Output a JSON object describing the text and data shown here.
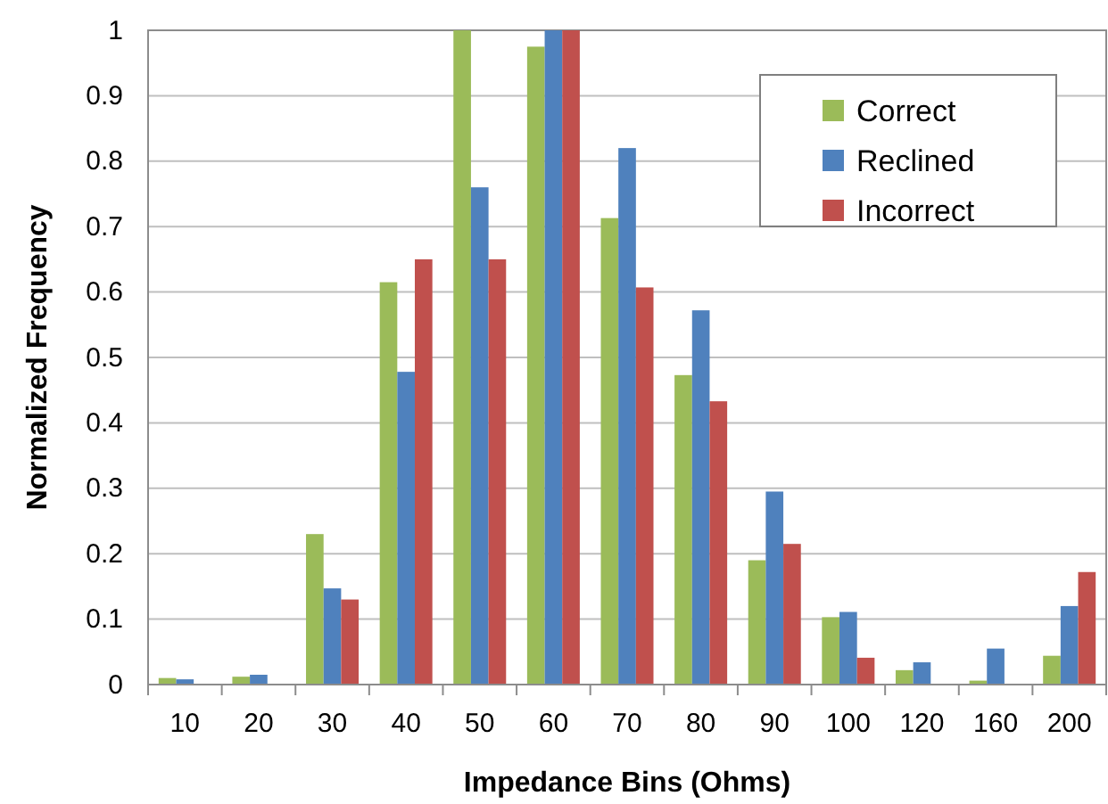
{
  "chart_data": {
    "type": "bar",
    "xlabel": "Impedance Bins (Ohms)",
    "ylabel": "Normalized Frequency",
    "categories": [
      "10",
      "20",
      "30",
      "40",
      "50",
      "60",
      "70",
      "80",
      "90",
      "100",
      "120",
      "160",
      "200"
    ],
    "series": [
      {
        "name": "Correct",
        "color": "#9bbb59",
        "values": [
          0.01,
          0.012,
          0.23,
          0.615,
          1,
          0.975,
          0.713,
          0.473,
          0.19,
          0.103,
          0.022,
          0.006,
          0.044
        ]
      },
      {
        "name": "Reclined",
        "color": "#4f81bd",
        "values": [
          0.008,
          0.015,
          0.147,
          0.478,
          0.76,
          1,
          0.82,
          0.572,
          0.295,
          0.111,
          0.034,
          0.055,
          0.12
        ]
      },
      {
        "name": "Incorrect",
        "color": "#c0504d",
        "values": [
          0,
          0,
          0.13,
          0.65,
          0.65,
          1,
          0.607,
          0.433,
          0.215,
          0.041,
          0,
          0,
          0.172
        ]
      }
    ],
    "ylim": [
      0,
      1
    ],
    "yticks": [
      0,
      0.1,
      0.2,
      0.3,
      0.4,
      0.5,
      0.6,
      0.7,
      0.8,
      0.9,
      1
    ],
    "grid": "y",
    "legend": "top right"
  }
}
